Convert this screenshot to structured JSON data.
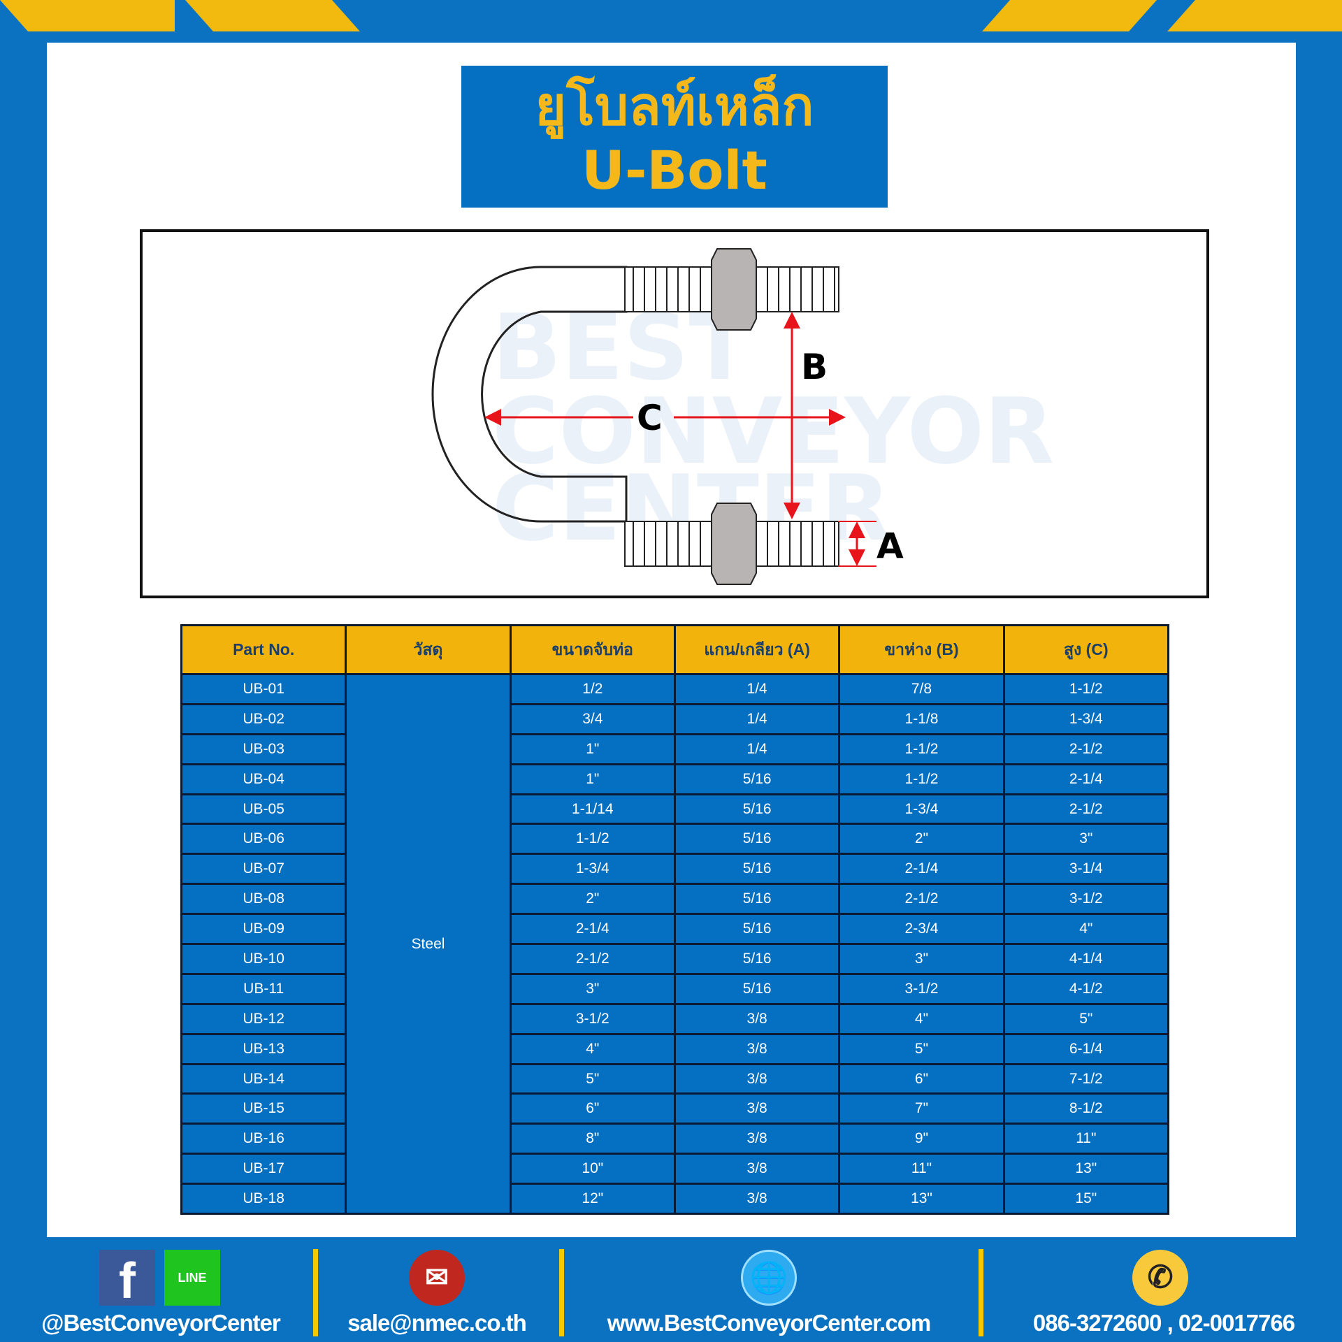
{
  "title": {
    "thai": "ยูโบลท์เหล็ก",
    "english": "U-Bolt"
  },
  "diagram": {
    "labels": {
      "a": "A",
      "b": "B",
      "c": "C"
    },
    "watermark": "BEST CONVEYOR CENTER"
  },
  "table": {
    "headers": [
      "Part No.",
      "วัสดุ",
      "ขนาดจับท่อ",
      "แกน/เกลียว (A)",
      "ขาห่าง (B)",
      "สูง (C)"
    ],
    "material": "Steel",
    "rows": [
      [
        "UB-01",
        "1/2",
        "1/4",
        "7/8",
        "1-1/2"
      ],
      [
        "UB-02",
        "3/4",
        "1/4",
        "1-1/8",
        "1-3/4"
      ],
      [
        "UB-03",
        "1\"",
        "1/4",
        "1-1/2",
        "2-1/2"
      ],
      [
        "UB-04",
        "1\"",
        "5/16",
        "1-1/2",
        "2-1/4"
      ],
      [
        "UB-05",
        "1-1/14",
        "5/16",
        "1-3/4",
        "2-1/2"
      ],
      [
        "UB-06",
        "1-1/2",
        "5/16",
        "2\"",
        "3\""
      ],
      [
        "UB-07",
        "1-3/4",
        "5/16",
        "2-1/4",
        "3-1/4"
      ],
      [
        "UB-08",
        "2\"",
        "5/16",
        "2-1/2",
        "3-1/2"
      ],
      [
        "UB-09",
        "2-1/4",
        "5/16",
        "2-3/4",
        "4\""
      ],
      [
        "UB-10",
        "2-1/2",
        "5/16",
        "3\"",
        "4-1/4"
      ],
      [
        "UB-11",
        "3\"",
        "5/16",
        "3-1/2",
        "4-1/2"
      ],
      [
        "UB-12",
        "3-1/2",
        "3/8",
        "4\"",
        "5\""
      ],
      [
        "UB-13",
        "4\"",
        "3/8",
        "5\"",
        "6-1/4"
      ],
      [
        "UB-14",
        "5\"",
        "3/8",
        "6\"",
        "7-1/2"
      ],
      [
        "UB-15",
        "6\"",
        "3/8",
        "7\"",
        "8-1/2"
      ],
      [
        "UB-16",
        "8\"",
        "3/8",
        "9\"",
        "11\""
      ],
      [
        "UB-17",
        "10\"",
        "3/8",
        "11\"",
        "13\""
      ],
      [
        "UB-18",
        "12\"",
        "3/8",
        "13\"",
        "15\""
      ]
    ]
  },
  "footer": {
    "social": "@BestConveyorCenter",
    "email": "sale@nmec.co.th",
    "website": "www.BestConveyorCenter.com",
    "phone": "086-3272600 , 02-0017766",
    "facebook_icon": "f",
    "line_icon": "LINE"
  },
  "colors": {
    "brand_blue": "#0570c2",
    "accent_yellow": "#f2b40c",
    "arrow_red": "#e8141b"
  }
}
